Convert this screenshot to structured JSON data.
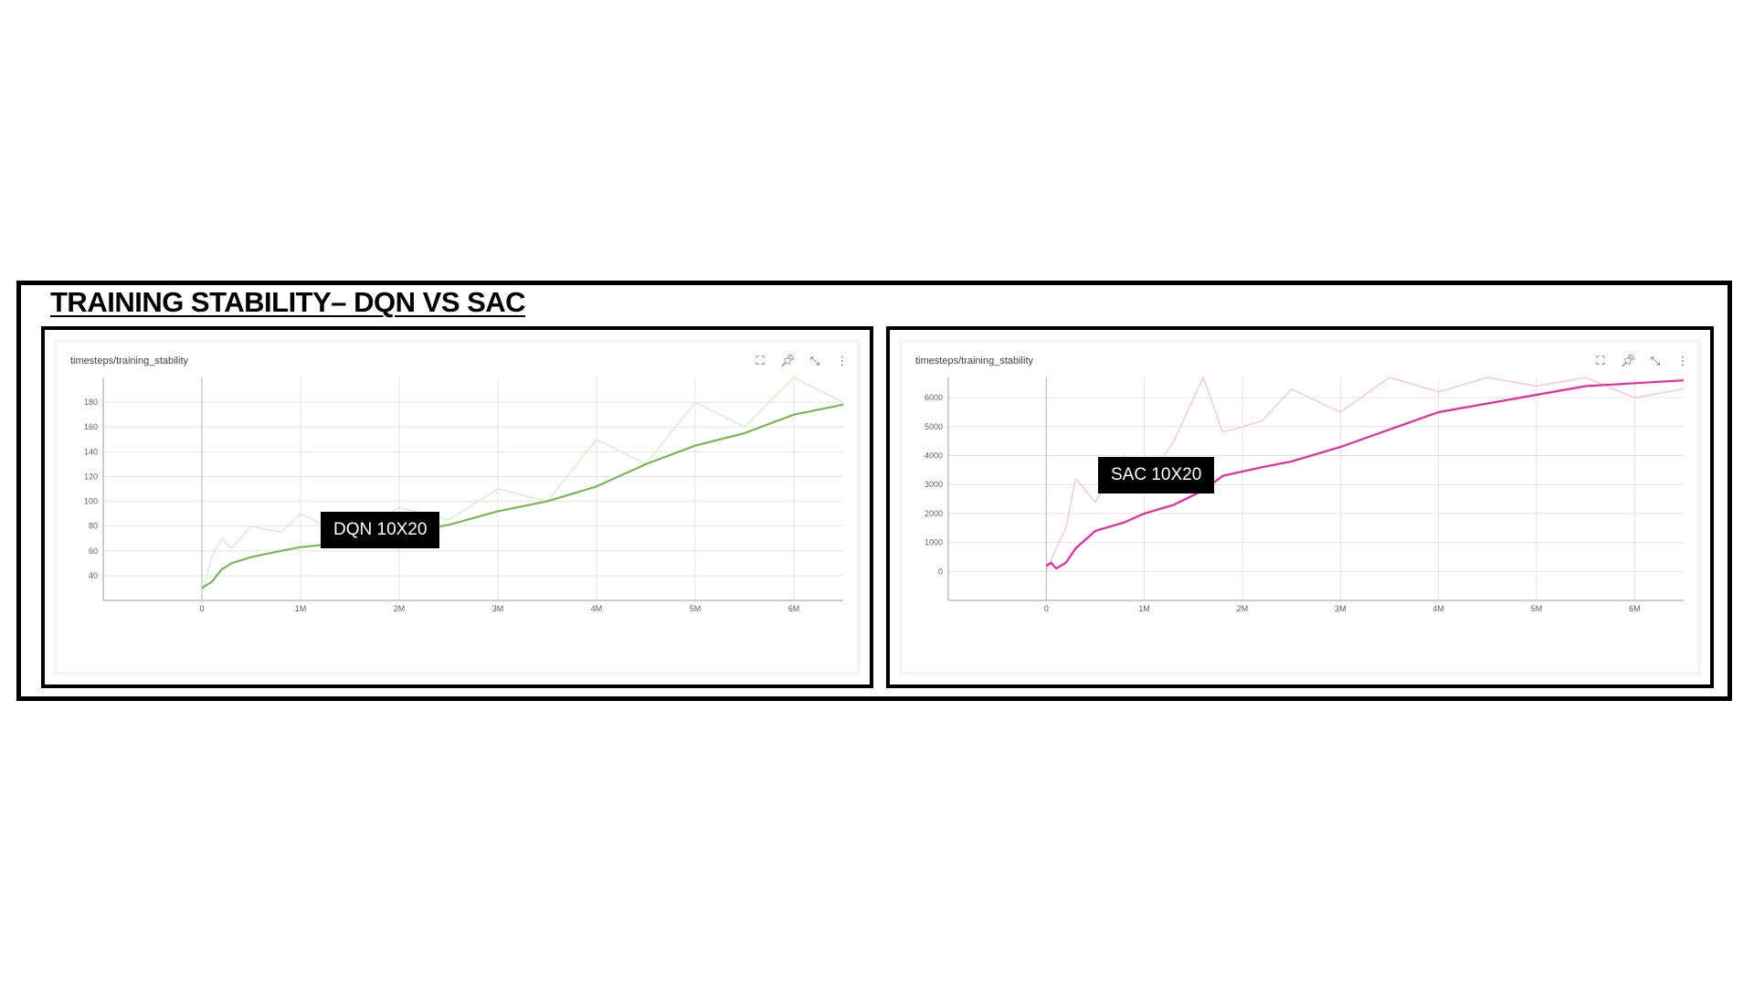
{
  "slide": {
    "title": "TRAINING STABILITY– DQN VS SAC"
  },
  "toolbar_icons": [
    "fit-domain-icon",
    "pin-icon",
    "fullscreen-icon",
    "more-vert-icon"
  ],
  "colors": {
    "dqn_smooth": "#7cb557",
    "dqn_raw": "#d9ecc9",
    "sac_smooth": "#e8289e",
    "sac_raw": "#f8c4e2",
    "grid": "#e4e4e4",
    "axis": "#9e9e9e"
  },
  "panels": [
    {
      "card_title": "timesteps/training_stability",
      "run_label": "DQN 10X20",
      "chart_data": {
        "type": "line",
        "x_unit": "timesteps",
        "xlim": [
          -1000000,
          6500000
        ],
        "ylim": [
          20,
          200
        ],
        "x_ticks": [
          0,
          1000000,
          2000000,
          3000000,
          4000000,
          5000000,
          6000000
        ],
        "x_tick_labels": [
          "0",
          "1M",
          "2M",
          "3M",
          "4M",
          "5M",
          "6M"
        ],
        "y_ticks": [
          40,
          60,
          80,
          100,
          120,
          140,
          160,
          180
        ],
        "y_tick_labels": [
          "40",
          "60",
          "80",
          "100",
          "120",
          "140",
          "160",
          "180"
        ],
        "series": [
          {
            "role": "smoothed",
            "x": [
              0,
              100000,
              200000,
              300000,
              500000,
              800000,
              1000000,
              1500000,
              2000000,
              2500000,
              3000000,
              3500000,
              4000000,
              4500000,
              5000000,
              5500000,
              6000000,
              6500000
            ],
            "y": [
              30,
              35,
              45,
              50,
              55,
              60,
              63,
              67,
              74,
              81,
              92,
              100,
              112,
              130,
              145,
              155,
              170,
              178
            ]
          },
          {
            "role": "raw",
            "x": [
              0,
              100000,
              200000,
              300000,
              500000,
              800000,
              1000000,
              1500000,
              2000000,
              2500000,
              3000000,
              3500000,
              4000000,
              4500000,
              5000000,
              5500000,
              6000000,
              6500000
            ],
            "y": [
              25,
              55,
              70,
              62,
              80,
              75,
              90,
              70,
              95,
              85,
              110,
              100,
              150,
              130,
              180,
              160,
              200,
              180
            ]
          }
        ]
      }
    },
    {
      "card_title": "timesteps/training_stability",
      "run_label": "SAC 10X20",
      "chart_data": {
        "type": "line",
        "x_unit": "timesteps",
        "xlim": [
          -1000000,
          6500000
        ],
        "ylim": [
          -1000,
          6700
        ],
        "x_ticks": [
          0,
          1000000,
          2000000,
          3000000,
          4000000,
          5000000,
          6000000
        ],
        "x_tick_labels": [
          "0",
          "1M",
          "2M",
          "3M",
          "4M",
          "5M",
          "6M"
        ],
        "y_ticks": [
          0,
          1000,
          2000,
          3000,
          4000,
          5000,
          6000
        ],
        "y_tick_labels": [
          "0",
          "1000",
          "2000",
          "3000",
          "4000",
          "5000",
          "6000"
        ],
        "series": [
          {
            "role": "smoothed",
            "x": [
              0,
              50000,
              100000,
              200000,
              300000,
              500000,
              800000,
              1000000,
              1300000,
              1600000,
              1800000,
              2200000,
              2500000,
              3000000,
              3500000,
              4000000,
              4500000,
              5000000,
              5500000,
              6000000,
              6500000
            ],
            "y": [
              200,
              300,
              100,
              300,
              800,
              1400,
              1700,
              2000,
              2300,
              2800,
              3300,
              3600,
              3800,
              4300,
              4900,
              5500,
              5800,
              6100,
              6400,
              6500,
              6600
            ]
          },
          {
            "role": "raw",
            "x": [
              0,
              100000,
              200000,
              300000,
              500000,
              800000,
              1000000,
              1300000,
              1600000,
              1800000,
              2200000,
              2500000,
              3000000,
              3500000,
              4000000,
              4500000,
              5000000,
              5500000,
              6000000,
              6500000
            ],
            "y": [
              0,
              800,
              1500,
              3200,
              2400,
              4000,
              3000,
              4500,
              6700,
              4800,
              5200,
              6300,
              5500,
              6700,
              6200,
              6700,
              6400,
              6700,
              6000,
              6300
            ]
          }
        ]
      }
    }
  ]
}
